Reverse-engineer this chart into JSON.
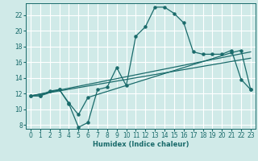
{
  "xlabel": "Humidex (Indice chaleur)",
  "background_color": "#d0eae8",
  "grid_color": "#ffffff",
  "line_color": "#1a6b6b",
  "xlim": [
    -0.5,
    23.5
  ],
  "ylim": [
    7.5,
    23.5
  ],
  "yticks": [
    8,
    10,
    12,
    14,
    16,
    18,
    20,
    22
  ],
  "xticks": [
    0,
    1,
    2,
    3,
    4,
    5,
    6,
    7,
    8,
    9,
    10,
    11,
    12,
    13,
    14,
    15,
    16,
    17,
    18,
    19,
    20,
    21,
    22,
    23
  ],
  "line1_x": [
    0,
    1,
    2,
    3,
    4,
    5,
    6,
    7,
    8,
    9,
    10,
    11,
    12,
    13,
    14,
    15,
    16,
    17,
    18,
    19,
    20,
    21,
    22,
    23
  ],
  "line1_y": [
    11.7,
    11.7,
    12.3,
    12.5,
    10.7,
    7.7,
    8.3,
    12.5,
    12.8,
    15.3,
    13.0,
    19.3,
    20.5,
    23.0,
    23.0,
    22.2,
    21.0,
    17.3,
    17.0,
    17.0,
    17.0,
    17.5,
    13.8,
    12.5
  ],
  "line2_x": [
    0,
    1,
    3,
    4,
    5,
    6,
    21,
    22,
    23
  ],
  "line2_y": [
    11.7,
    11.7,
    12.5,
    10.8,
    9.3,
    11.5,
    17.2,
    17.5,
    12.5
  ],
  "line3_x": [
    0,
    23
  ],
  "line3_y": [
    11.7,
    16.5
  ],
  "line4_x": [
    0,
    23
  ],
  "line4_y": [
    11.7,
    17.3
  ]
}
